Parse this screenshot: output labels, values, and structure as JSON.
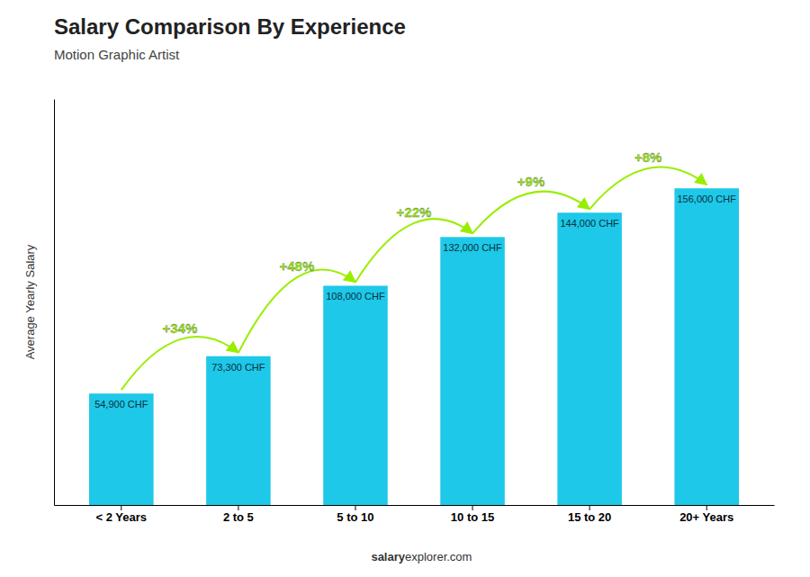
{
  "chart_data": {
    "type": "bar",
    "title": "Salary Comparison By Experience",
    "subtitle": "Motion Graphic Artist",
    "ylabel": "Average Yearly Salary",
    "categories": [
      "< 2 Years",
      "2 to 5",
      "5 to 10",
      "10 to 15",
      "15 to 20",
      "20+ Years"
    ],
    "values": [
      54900,
      73300,
      108000,
      132000,
      144000,
      156000
    ],
    "value_labels": [
      "54,900 CHF",
      "73,300 CHF",
      "108,000 CHF",
      "132,000 CHF",
      "144,000 CHF",
      "156,000 CHF"
    ],
    "data_labels": true,
    "color": "#1ec8e8",
    "annotations": [
      {
        "text": "+34%",
        "color": "#99ee00"
      },
      {
        "text": "+48%",
        "color": "#99ee00"
      },
      {
        "text": "+22%",
        "color": "#99ee00"
      },
      {
        "text": "+9%",
        "color": "#99ee00"
      },
      {
        "text": "+8%",
        "color": "#99ee00"
      }
    ],
    "footer": [
      "salary",
      "explorer.com"
    ],
    "ylim": [
      0,
      200000
    ],
    "yticks": [],
    "grid": false,
    "tick_labels": "x"
  }
}
